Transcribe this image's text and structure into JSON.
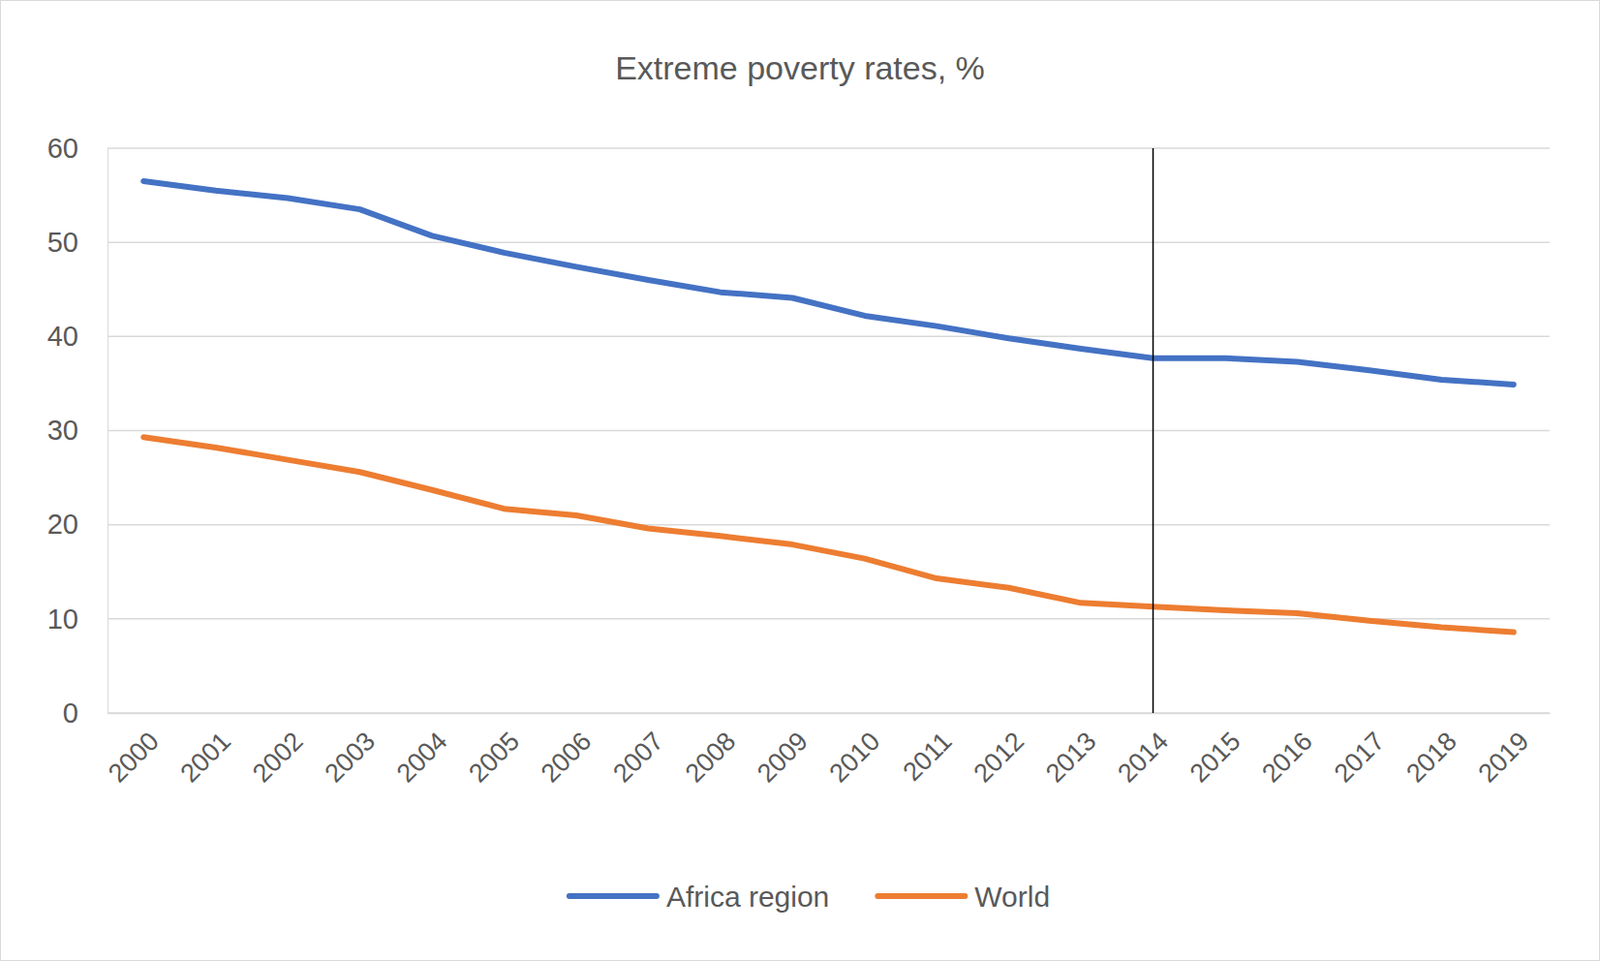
{
  "chart_data": {
    "type": "line",
    "title": "Extreme poverty rates, %",
    "categories": [
      "2000",
      "2001",
      "2002",
      "2003",
      "2004",
      "2005",
      "2006",
      "2007",
      "2008",
      "2009",
      "2010",
      "2011",
      "2012",
      "2013",
      "2014",
      "2015",
      "2016",
      "2017",
      "2018",
      "2019"
    ],
    "series": [
      {
        "name": "Africa region",
        "color": "#4472c4",
        "values": [
          56.5,
          55.5,
          54.7,
          53.5,
          50.7,
          48.9,
          47.4,
          46.0,
          44.7,
          44.1,
          42.2,
          41.1,
          39.8,
          38.7,
          37.7,
          37.7,
          37.3,
          36.4,
          35.4,
          34.9
        ]
      },
      {
        "name": "World",
        "color": "#ed7d31",
        "values": [
          29.3,
          28.2,
          26.9,
          25.6,
          23.7,
          21.7,
          21.0,
          19.6,
          18.8,
          17.9,
          16.4,
          14.3,
          13.3,
          11.7,
          11.3,
          10.9,
          10.6,
          9.8,
          9.1,
          8.6
        ]
      }
    ],
    "vertical_line": "2014",
    "ylim": [
      0,
      60
    ],
    "yticks": [
      0,
      10,
      20,
      30,
      40,
      50,
      60
    ],
    "grid": true,
    "legend": "bottom"
  }
}
